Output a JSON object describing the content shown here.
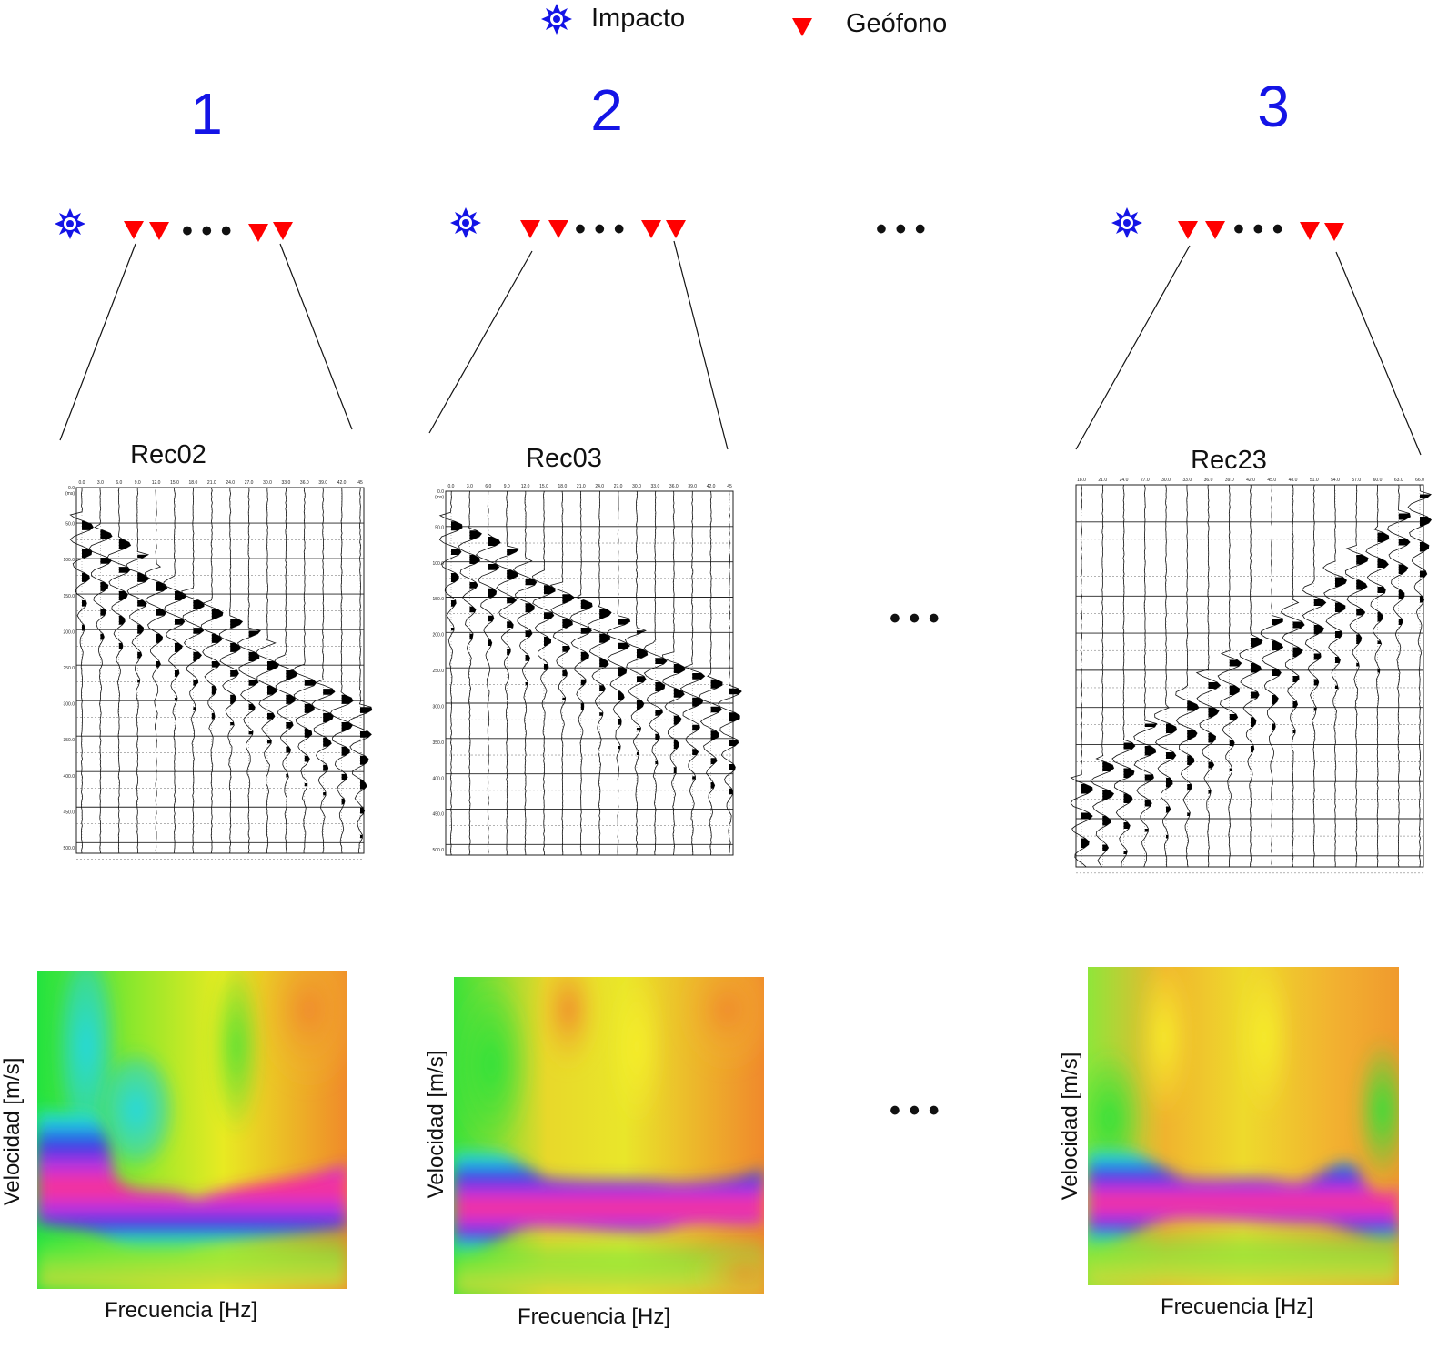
{
  "legend": {
    "impact_label": "Impacto",
    "geophone_label": "Geófono"
  },
  "colors": {
    "impact": "#1414e6",
    "geophone": "#ff0000",
    "panel_number": "#1414e6"
  },
  "icons": {
    "impact": "impact-burst-icon",
    "geophone": "geophone-triangle-icon"
  },
  "ellipsis": "• • •",
  "panels": [
    {
      "number": "1",
      "record_title": "Rec02",
      "offset_ticks": [
        "0.0",
        "3.0",
        "6.0",
        "9.0",
        "12.0",
        "15.0",
        "18.0",
        "21.0",
        "24.0",
        "27.0",
        "30.0",
        "33.0",
        "36.0",
        "39.0",
        "42.0",
        "45"
      ],
      "time_unit": "(ms)",
      "time_ticks": [
        "0.0",
        "50.0",
        "100.0",
        "150.0",
        "200.0",
        "250.0",
        "300.0",
        "350.0",
        "400.0",
        "450.0",
        "500.0"
      ],
      "dispersion": {
        "xlabel": "Frecuencia [Hz]",
        "ylabel": "Velocidad [m/s]"
      }
    },
    {
      "number": "2",
      "record_title": "Rec03",
      "offset_ticks": [
        "0.0",
        "3.0",
        "6.0",
        "9.0",
        "12.0",
        "15.0",
        "18.0",
        "21.0",
        "24.0",
        "27.0",
        "30.0",
        "33.0",
        "36.0",
        "39.0",
        "42.0",
        "45"
      ],
      "time_unit": "(ms)",
      "time_ticks": [
        "0.0",
        "50.0",
        "100.0",
        "150.0",
        "200.0",
        "250.0",
        "300.0",
        "350.0",
        "400.0",
        "450.0",
        "500.0"
      ],
      "dispersion": {
        "xlabel": "Frecuencia [Hz]",
        "ylabel": "Velocidad [m/s]"
      }
    },
    {
      "number": "3",
      "record_title": "Rec23",
      "offset_ticks": [
        "18.0",
        "21.0",
        "24.0",
        "27.0",
        "30.0",
        "33.0",
        "36.0",
        "39.0",
        "42.0",
        "45.0",
        "48.0",
        "51.0",
        "54.0",
        "57.0",
        "60.0",
        "63.0",
        "66.0"
      ],
      "time_unit": "",
      "time_ticks": [],
      "dispersion": {
        "xlabel": "Frecuencia [Hz]",
        "ylabel": "Velocidad [m/s]"
      }
    }
  ]
}
